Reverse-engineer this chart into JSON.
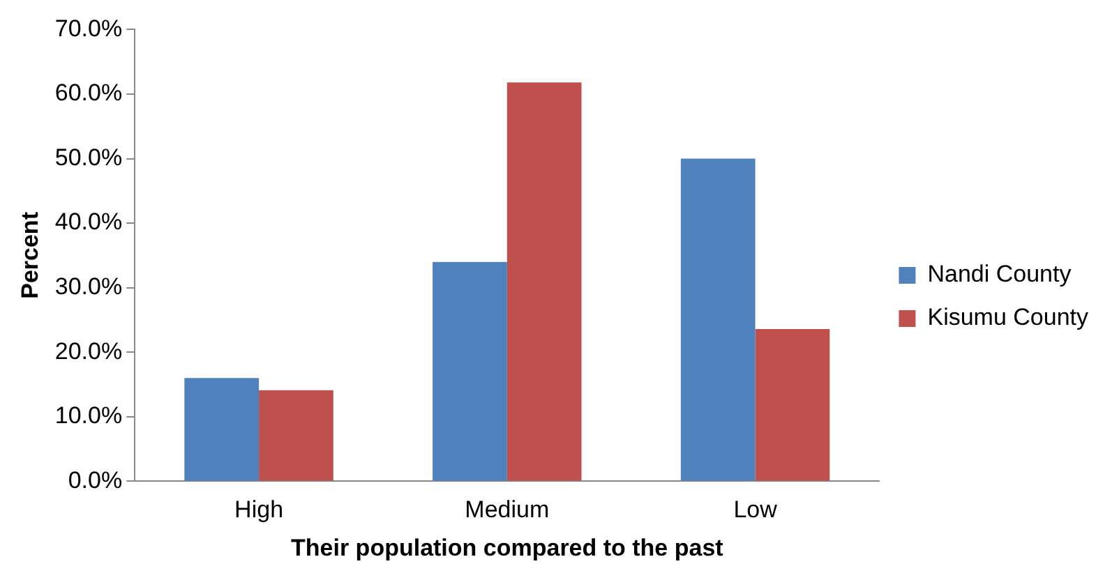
{
  "chart_data": {
    "type": "bar",
    "xlabel": "Their population compared to the past",
    "ylabel": "Percent",
    "categories": [
      "High",
      "Medium",
      "Low"
    ],
    "series": [
      {
        "name": "Nandi County",
        "color": "#4f81bd",
        "values": [
          16.0,
          34.0,
          50.0
        ]
      },
      {
        "name": "Kisumu County",
        "color": "#c0504d",
        "values": [
          14.1,
          61.8,
          23.6
        ]
      }
    ],
    "ylim": [
      0,
      70
    ],
    "yticks": [
      {
        "value": 0,
        "label": "0.0%"
      },
      {
        "value": 10,
        "label": "10.0%"
      },
      {
        "value": 20,
        "label": "20.0%"
      },
      {
        "value": 30,
        "label": "30.0%"
      },
      {
        "value": 40,
        "label": "40.0%"
      },
      {
        "value": 50,
        "label": "50.0%"
      },
      {
        "value": 60,
        "label": "60.0%"
      },
      {
        "value": 70,
        "label": "70.0%"
      }
    ],
    "grid": false,
    "legend": "right"
  }
}
